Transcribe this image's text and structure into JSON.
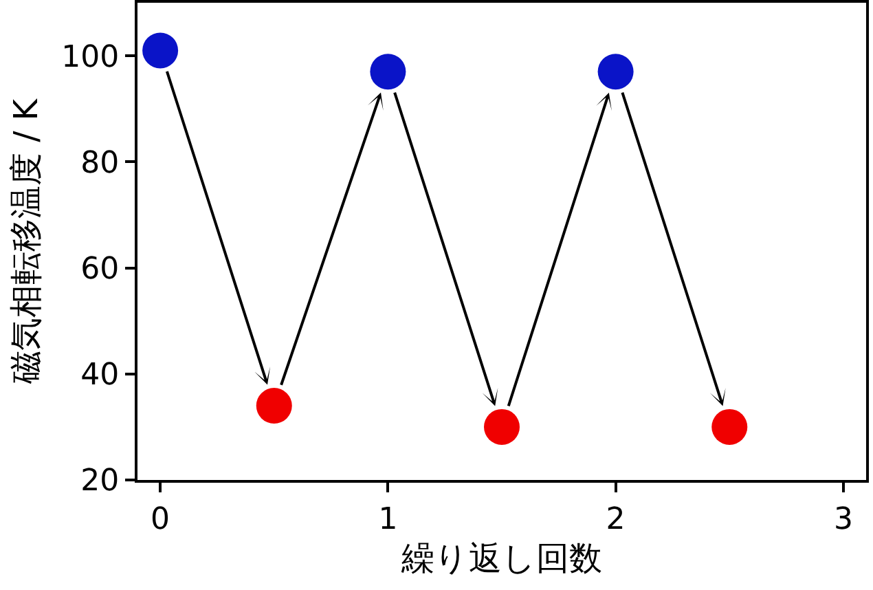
{
  "chart_data": {
    "type": "scatter",
    "xlabel": "繰り返し回数",
    "ylabel": "磁気相転移温度 / K",
    "x": [
      0,
      0.5,
      1,
      1.5,
      2,
      2.5
    ],
    "values": [
      101,
      34,
      97,
      30,
      97,
      30
    ],
    "colors": [
      "#0a14c8",
      "#f00000",
      "#0a14c8",
      "#f00000",
      "#0a14c8",
      "#f00000"
    ],
    "marker": "circle",
    "xlim": [
      -0.1,
      3.1
    ],
    "xticks": [
      0,
      1,
      2,
      3
    ],
    "ylim": [
      20,
      110
    ],
    "yticks": [
      20,
      40,
      60,
      80,
      100
    ],
    "grid": false
  }
}
